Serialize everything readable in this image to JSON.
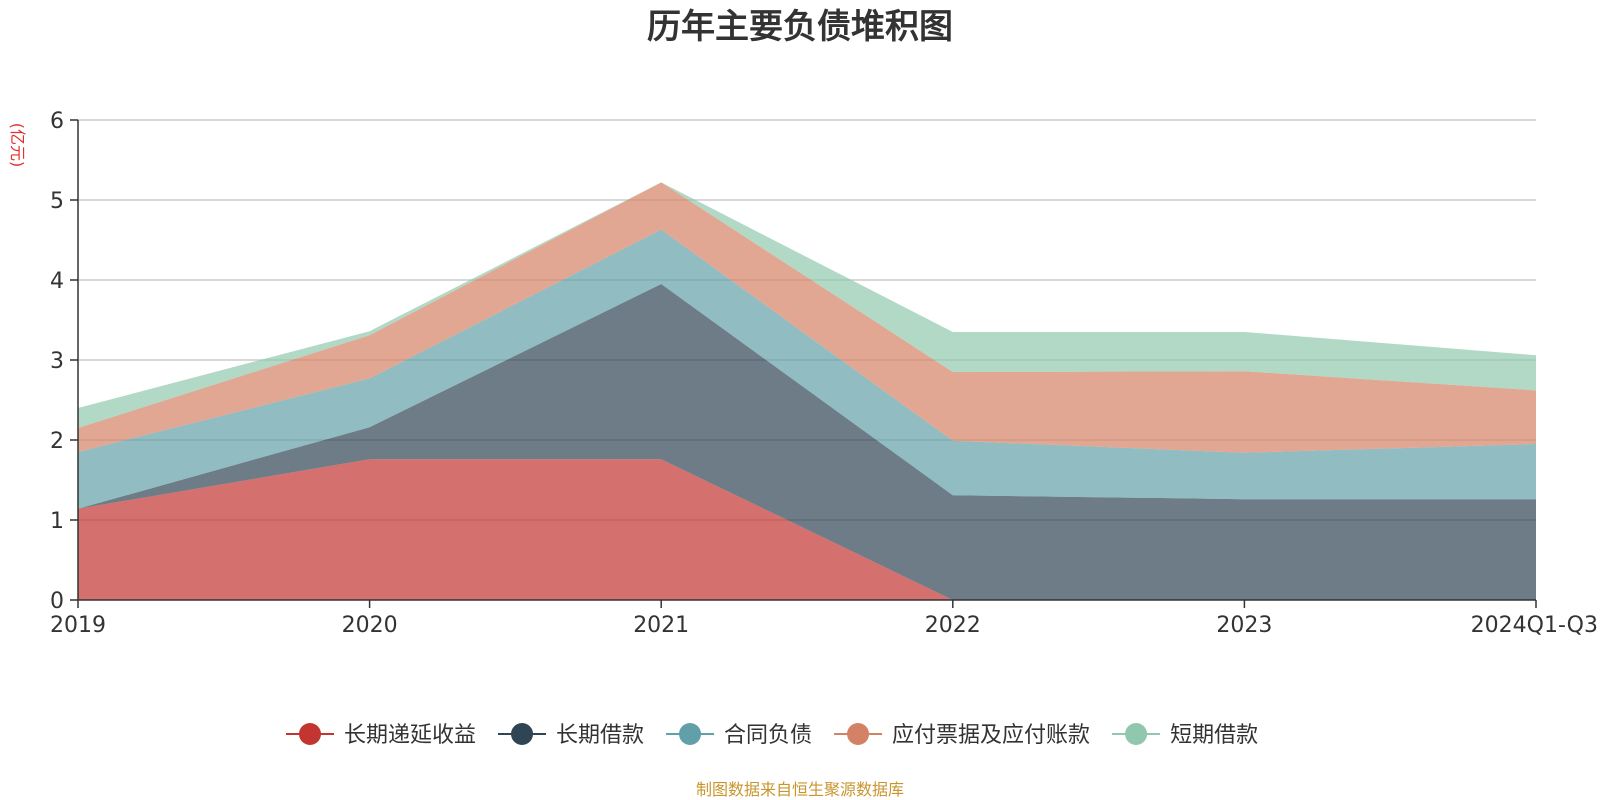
{
  "chart_data": {
    "type": "area",
    "stacked": true,
    "title": "历年主要负债堆积图",
    "unit_label": "(亿元)",
    "categories": [
      "2019",
      "2020",
      "2021",
      "2022",
      "2023",
      "2024Q1-Q3"
    ],
    "ylim": [
      0,
      6
    ],
    "yticks": [
      0,
      1,
      2,
      3,
      4,
      5,
      6
    ],
    "grid": true,
    "legend_position": "bottom",
    "series": [
      {
        "name": "长期递延收益",
        "color": "#c23531",
        "values": [
          1.14,
          1.76,
          1.76,
          0.0,
          0.0,
          0.0
        ]
      },
      {
        "name": "长期借款",
        "color": "#2f4554",
        "values": [
          0.0,
          0.4,
          2.19,
          1.31,
          1.26,
          1.26
        ]
      },
      {
        "name": "合同负债",
        "color": "#61a0a8",
        "values": [
          0.71,
          0.61,
          0.68,
          0.68,
          0.58,
          0.69
        ]
      },
      {
        "name": "应付票据及应付账款",
        "color": "#d48265",
        "values": [
          0.3,
          0.54,
          0.59,
          0.86,
          1.02,
          0.67
        ]
      },
      {
        "name": "短期借款",
        "color": "#91c7ae",
        "values": [
          0.25,
          0.05,
          0.0,
          0.5,
          0.49,
          0.44
        ]
      }
    ]
  },
  "source_note": "制图数据来自恒生聚源数据库"
}
